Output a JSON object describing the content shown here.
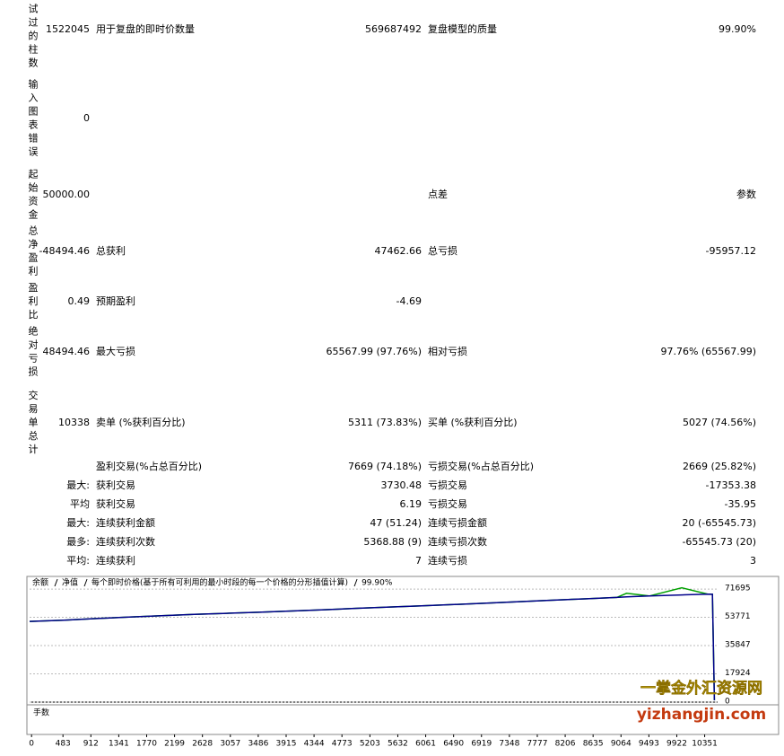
{
  "table": {
    "rows": [
      [
        "测试过的柱数",
        "1522045",
        "用于复盘的即时价数量",
        "569687492",
        "复盘模型的质量",
        "99.90%"
      ],
      [
        "输入图表错误",
        "0",
        null,
        null,
        null,
        null
      ],
      [
        "起始资金",
        "50000.00",
        null,
        null,
        "点差",
        "参数"
      ],
      [
        "总净盈利",
        "-48494.46",
        "总获利",
        "47462.66",
        "总亏损",
        "-95957.12"
      ],
      [
        "盈利比",
        "0.49",
        "预期盈利",
        "-4.69",
        null,
        null
      ],
      [
        "绝对亏损",
        "48494.46",
        "最大亏损",
        "65567.99 (97.76%)",
        "相对亏损",
        "97.76% (65567.99)"
      ],
      [
        "交易单总计",
        "10338",
        "卖单 (%获利百分比)",
        "5311 (73.83%)",
        "买单 (%获利百分比)",
        "5027 (74.56%)"
      ],
      [
        null,
        null,
        "盈利交易(%占总百分比)",
        "7669 (74.18%)",
        "亏损交易(%占总百分比)",
        "2669 (25.82%)"
      ],
      [
        null,
        "最大:",
        "获利交易",
        "3730.48",
        "亏损交易",
        "-17353.38"
      ],
      [
        null,
        "平均",
        "获利交易",
        "6.19",
        "亏损交易",
        "-35.95"
      ],
      [
        null,
        "最大:",
        "连续获利金额",
        "47 (51.24)",
        "连续亏损金额",
        "20 (-65545.73)"
      ],
      [
        null,
        "最多:",
        "连续获利次数",
        "5368.88 (9)",
        "连续亏损次数",
        "-65545.73 (20)"
      ],
      [
        null,
        "平均:",
        "连续获利",
        "7",
        "连续亏损",
        "3"
      ]
    ]
  },
  "chart_data": {
    "type": "line",
    "subtitle": "每个即时价格(基于所有可利用的最小时段的每一个价格的分形插值计算)",
    "quality": "99.90%",
    "lower_panel_label": "手数",
    "x": [
      -30,
      500,
      1000,
      1500,
      2000,
      2500,
      3000,
      3500,
      4000,
      4500,
      5000,
      5500,
      6000,
      6500,
      7000,
      7500,
      8000,
      8500,
      9000,
      9150,
      9500,
      10000,
      10400,
      10470,
      10500
    ],
    "series": [
      {
        "name": "净值",
        "color": "#00a000",
        "values": [
          51200,
          52000,
          53000,
          54000,
          54800,
          55600,
          56300,
          57000,
          57800,
          58600,
          59500,
          60300,
          61100,
          61900,
          62800,
          63700,
          64600,
          65500,
          66400,
          69000,
          67300,
          72500,
          68500,
          68400,
          1200
        ]
      },
      {
        "name": "余额",
        "color": "#00008b",
        "values": [
          51200,
          52000,
          53000,
          54000,
          54800,
          55600,
          56300,
          57000,
          57800,
          58600,
          59500,
          60300,
          61100,
          61900,
          62800,
          63700,
          64600,
          65500,
          66400,
          66700,
          67300,
          68000,
          68500,
          68400,
          1200
        ]
      }
    ],
    "xlim": [
      -30,
      10550
    ],
    "xticks": [
      0,
      483,
      912,
      1341,
      1770,
      2199,
      2628,
      3057,
      3486,
      3915,
      4344,
      4773,
      5203,
      5632,
      6061,
      6490,
      6919,
      7348,
      7777,
      8206,
      8635,
      9064,
      9493,
      9922,
      10351
    ],
    "ylim": [
      0,
      78000
    ],
    "yticks": [
      0,
      17924,
      35847,
      53771,
      71695
    ],
    "grid": true
  },
  "watermark": {
    "line1": "一掌金外汇资源网",
    "line2": "yizhangjin.com"
  }
}
